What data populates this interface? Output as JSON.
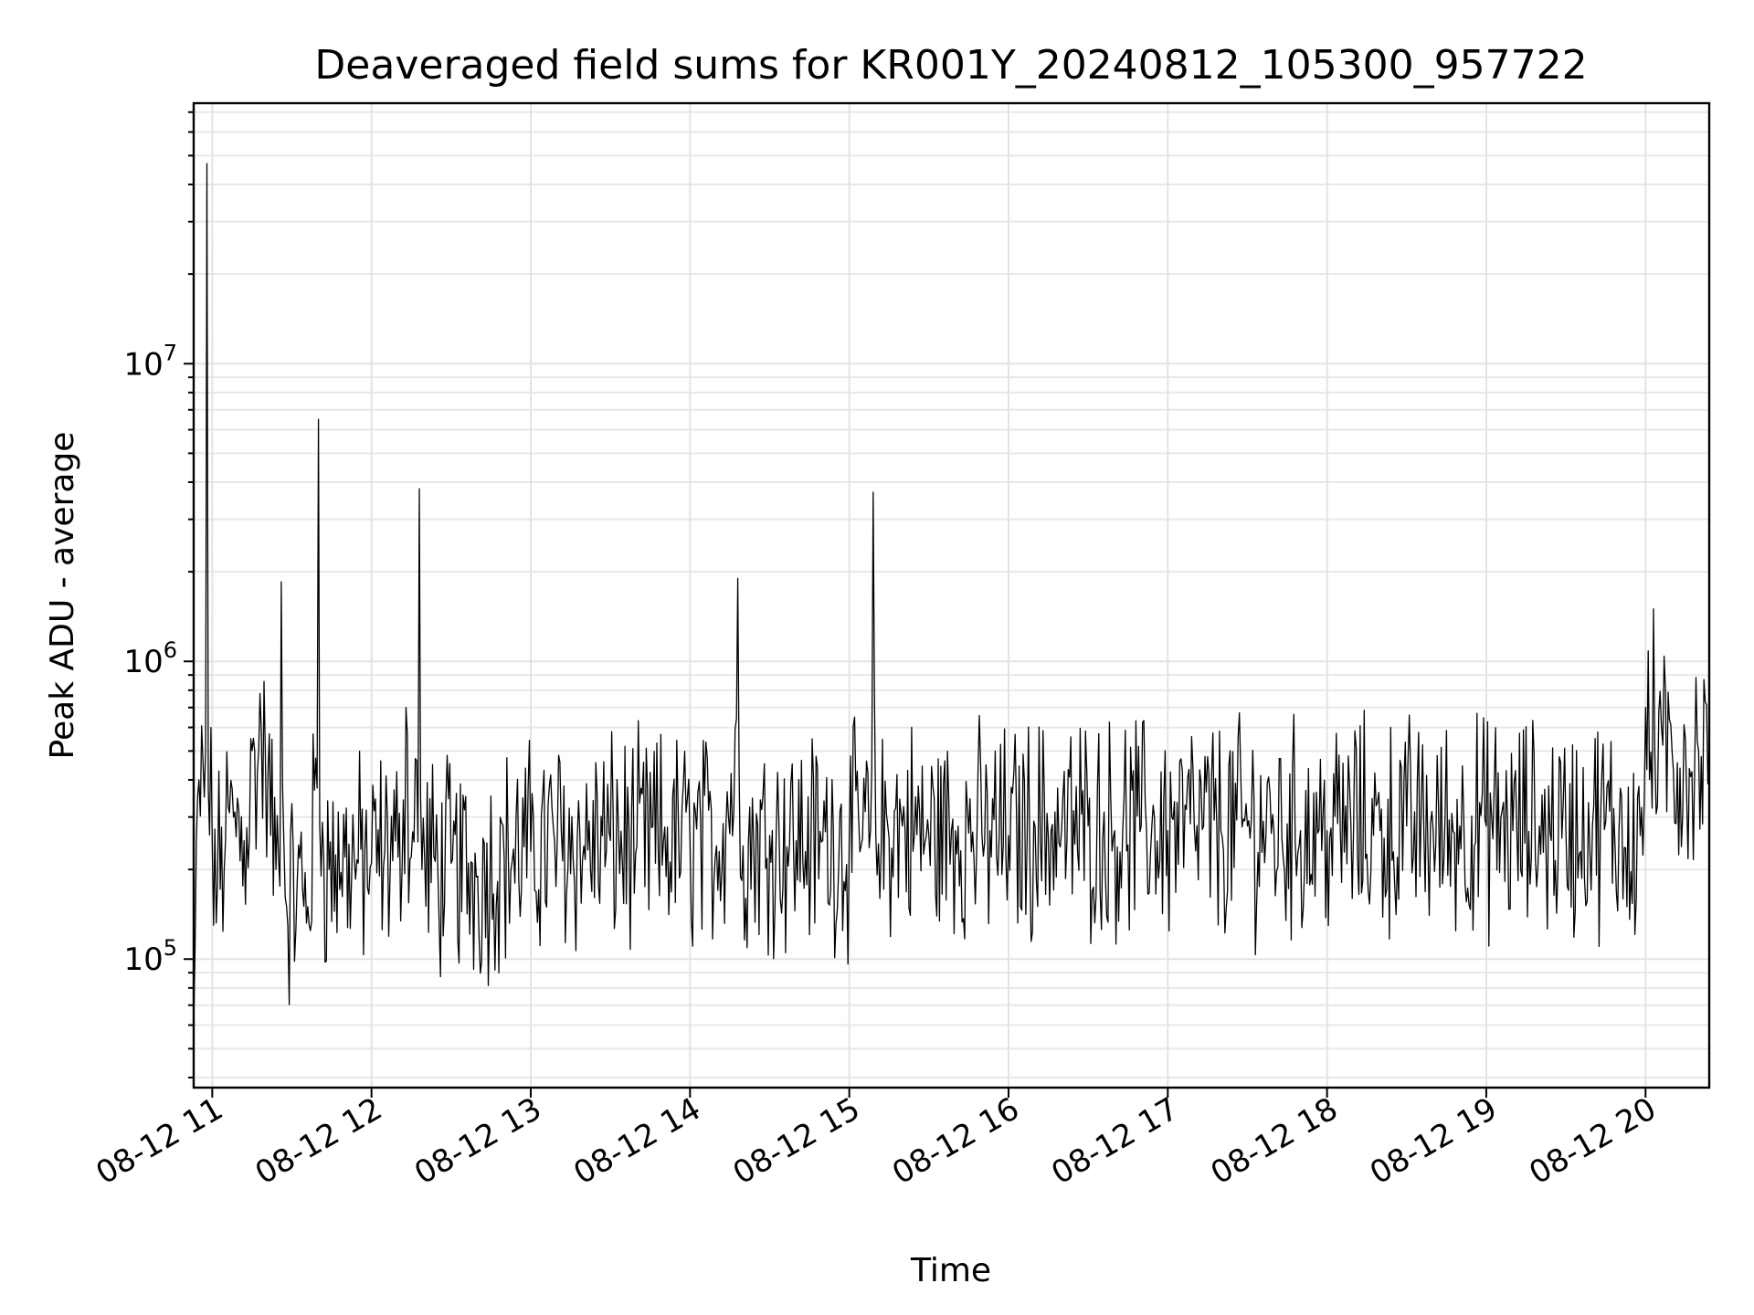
{
  "chart_data": {
    "type": "line",
    "title": "Deaveraged field sums for KR001Y_20240812_105300_957722",
    "xlabel": "Time",
    "ylabel": "Peak ADU - average",
    "x_scale": "time",
    "y_scale": "log",
    "xlim": [
      "2024-08-12T10:53:00",
      "2024-08-12T20:24:00"
    ],
    "ylim": [
      37000,
      75000000
    ],
    "x_tick_labels": [
      "08-12 11",
      "08-12 12",
      "08-12 13",
      "08-12 14",
      "08-12 15",
      "08-12 16",
      "08-12 17",
      "08-12 18",
      "08-12 19",
      "08-12 20"
    ],
    "x_ticks": [
      "2024-08-12T11:00:00",
      "2024-08-12T12:00:00",
      "2024-08-12T13:00:00",
      "2024-08-12T14:00:00",
      "2024-08-12T15:00:00",
      "2024-08-12T16:00:00",
      "2024-08-12T17:00:00",
      "2024-08-12T18:00:00",
      "2024-08-12T19:00:00",
      "2024-08-12T20:00:00"
    ],
    "y_tick_labels": [
      {
        "base": "10",
        "exp": "5"
      },
      {
        "base": "10",
        "exp": "6"
      },
      {
        "base": "10",
        "exp": "7"
      }
    ],
    "y_ticks": [
      100000,
      1000000,
      10000000
    ],
    "grid": true,
    "line_color": "#000000",
    "series": [
      {
        "x": [
          "2024-08-12T10:53:00",
          "2024-08-12T10:55:00",
          "2024-08-12T10:57:00",
          "2024-08-12T10:58:00",
          "2024-08-12T11:00:00",
          "2024-08-12T11:02:00",
          "2024-08-12T11:05:00",
          "2024-08-12T11:08:00",
          "2024-08-12T11:12:00",
          "2024-08-12T11:16:00",
          "2024-08-12T11:18:00",
          "2024-08-12T11:20:00",
          "2024-08-12T11:24:00",
          "2024-08-12T11:26:00",
          "2024-08-12T11:28:00",
          "2024-08-12T11:32:00",
          "2024-08-12T11:36:00",
          "2024-08-12T11:40:00",
          "2024-08-12T11:42:00",
          "2024-08-12T11:44:00",
          "2024-08-12T11:50:00",
          "2024-08-12T11:55:00",
          "2024-08-12T12:00:00",
          "2024-08-12T12:05:00",
          "2024-08-12T12:10:00",
          "2024-08-12T12:13:00",
          "2024-08-12T12:15:00",
          "2024-08-12T12:18:00",
          "2024-08-12T12:19:00",
          "2024-08-12T12:20:00",
          "2024-08-12T12:25:00",
          "2024-08-12T12:30:00",
          "2024-08-12T12:40:00",
          "2024-08-12T12:50:00",
          "2024-08-12T13:00:00",
          "2024-08-12T13:10:00",
          "2024-08-12T13:20:00",
          "2024-08-12T13:30:00",
          "2024-08-12T13:40:00",
          "2024-08-12T13:50:00",
          "2024-08-12T14:00:00",
          "2024-08-12T14:10:00",
          "2024-08-12T14:18:00",
          "2024-08-12T14:20:00",
          "2024-08-12T14:30:00",
          "2024-08-12T14:40:00",
          "2024-08-12T14:50:00",
          "2024-08-12T15:00:00",
          "2024-08-12T15:08:00",
          "2024-08-12T15:09:00",
          "2024-08-12T15:10:00",
          "2024-08-12T15:20:00",
          "2024-08-12T15:30:00",
          "2024-08-12T15:40:00",
          "2024-08-12T15:50:00",
          "2024-08-12T16:00:00",
          "2024-08-12T16:10:00",
          "2024-08-12T16:20:00",
          "2024-08-12T16:30:00",
          "2024-08-12T16:40:00",
          "2024-08-12T16:50:00",
          "2024-08-12T17:00:00",
          "2024-08-12T17:10:00",
          "2024-08-12T17:20:00",
          "2024-08-12T17:30:00",
          "2024-08-12T17:40:00",
          "2024-08-12T17:50:00",
          "2024-08-12T18:00:00",
          "2024-08-12T18:10:00",
          "2024-08-12T18:20:00",
          "2024-08-12T18:30:00",
          "2024-08-12T18:40:00",
          "2024-08-12T18:50:00",
          "2024-08-12T19:00:00",
          "2024-08-12T19:10:00",
          "2024-08-12T19:20:00",
          "2024-08-12T19:30:00",
          "2024-08-12T19:40:00",
          "2024-08-12T19:50:00",
          "2024-08-12T19:58:00",
          "2024-08-12T20:00:00",
          "2024-08-12T20:03:00",
          "2024-08-12T20:06:00",
          "2024-08-12T20:10:00",
          "2024-08-12T20:15:00",
          "2024-08-12T20:20:00",
          "2024-08-12T20:24:00"
        ],
        "values": [
          60000,
          400000,
          350000,
          47000000,
          250000,
          180000,
          250000,
          300000,
          250000,
          500000,
          780000,
          500000,
          200000,
          1850000,
          150000,
          180000,
          150000,
          6500000,
          220000,
          200000,
          220000,
          210000,
          210000,
          230000,
          220000,
          700000,
          220000,
          3800000,
          200000,
          220000,
          200000,
          210000,
          190000,
          220000,
          230000,
          250000,
          240000,
          250000,
          240000,
          250000,
          250000,
          240000,
          1900000,
          240000,
          260000,
          250000,
          250000,
          250000,
          270000,
          3700000,
          260000,
          280000,
          260000,
          270000,
          260000,
          260000,
          280000,
          270000,
          280000,
          270000,
          280000,
          270000,
          280000,
          270000,
          280000,
          270000,
          270000,
          270000,
          280000,
          270000,
          280000,
          270000,
          280000,
          280000,
          270000,
          280000,
          270000,
          280000,
          270000,
          260000,
          700000,
          1500000,
          600000,
          500000,
          550000,
          500000,
          550000
        ]
      }
    ]
  }
}
